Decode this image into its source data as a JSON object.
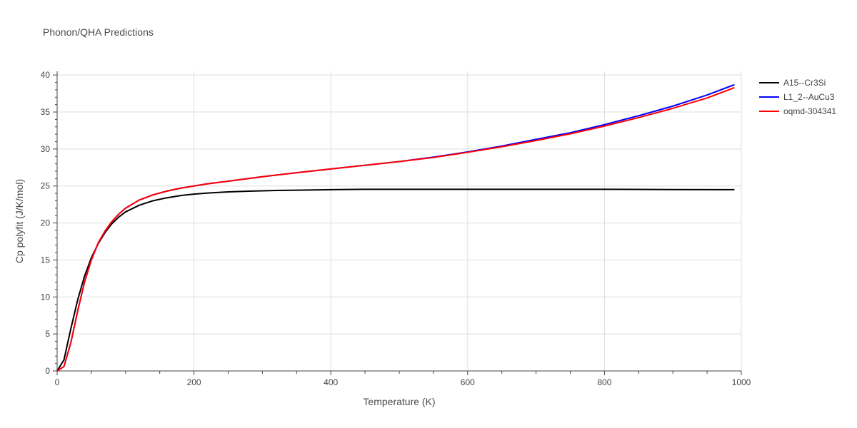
{
  "chart_data": {
    "type": "line",
    "title": "Phonon/QHA Predictions",
    "xlabel": "Temperature (K)",
    "ylabel": "Cp polyfit (J/K/mol)",
    "xlim": [
      0,
      1000
    ],
    "ylim": [
      0,
      40.5
    ],
    "x_ticks": [
      0,
      200,
      400,
      600,
      800,
      1000
    ],
    "x_tick_labels": [
      "0",
      "200",
      "400",
      "600",
      "800",
      "1000"
    ],
    "y_ticks": [
      0,
      5,
      10,
      15,
      20,
      25,
      30,
      35,
      40
    ],
    "y_tick_labels": [
      "0",
      "5",
      "10",
      "15",
      "20",
      "25",
      "30",
      "35",
      "40"
    ],
    "grid": true,
    "legend_position": "top-right-outside",
    "series": [
      {
        "name": "A15--Cr3Si",
        "color": "#000000",
        "x": [
          0,
          10,
          20,
          30,
          40,
          50,
          60,
          70,
          80,
          90,
          100,
          120,
          140,
          160,
          180,
          200,
          220,
          250,
          280,
          320,
          360,
          400,
          450,
          500,
          600,
          700,
          800,
          900,
          990
        ],
        "y": [
          0,
          1.5,
          5.7,
          9.6,
          12.8,
          15.3,
          17.2,
          18.7,
          19.9,
          20.8,
          21.5,
          22.4,
          23.0,
          23.4,
          23.7,
          23.9,
          24.05,
          24.2,
          24.3,
          24.4,
          24.45,
          24.5,
          24.55,
          24.55,
          24.55,
          24.55,
          24.55,
          24.52,
          24.5
        ]
      },
      {
        "name": "L1_2--AuCu3",
        "color": "#0000ff",
        "x": [
          0,
          10,
          20,
          30,
          40,
          50,
          60,
          70,
          80,
          90,
          100,
          120,
          140,
          160,
          180,
          200,
          220,
          250,
          300,
          350,
          400,
          450,
          500,
          550,
          600,
          650,
          700,
          750,
          800,
          850,
          900,
          950,
          990
        ],
        "y": [
          0,
          0.6,
          3.8,
          8.1,
          12.0,
          15.0,
          17.3,
          18.9,
          20.2,
          21.2,
          22.0,
          23.1,
          23.8,
          24.3,
          24.7,
          25.0,
          25.3,
          25.65,
          26.25,
          26.8,
          27.3,
          27.8,
          28.3,
          28.9,
          29.6,
          30.4,
          31.3,
          32.2,
          33.3,
          34.5,
          35.8,
          37.3,
          38.7
        ]
      },
      {
        "name": "oqmd-304341",
        "color": "#ff0000",
        "x": [
          0,
          10,
          20,
          30,
          40,
          50,
          60,
          70,
          80,
          90,
          100,
          120,
          140,
          160,
          180,
          200,
          220,
          250,
          300,
          350,
          400,
          450,
          500,
          550,
          600,
          650,
          700,
          750,
          800,
          850,
          900,
          950,
          990
        ],
        "y": [
          0,
          0.6,
          3.8,
          8.1,
          12.0,
          15.0,
          17.3,
          18.9,
          20.2,
          21.2,
          22.0,
          23.1,
          23.8,
          24.3,
          24.7,
          25.0,
          25.3,
          25.65,
          26.25,
          26.8,
          27.3,
          27.8,
          28.3,
          28.85,
          29.55,
          30.3,
          31.15,
          32.05,
          33.1,
          34.25,
          35.5,
          36.9,
          38.3
        ]
      }
    ]
  }
}
